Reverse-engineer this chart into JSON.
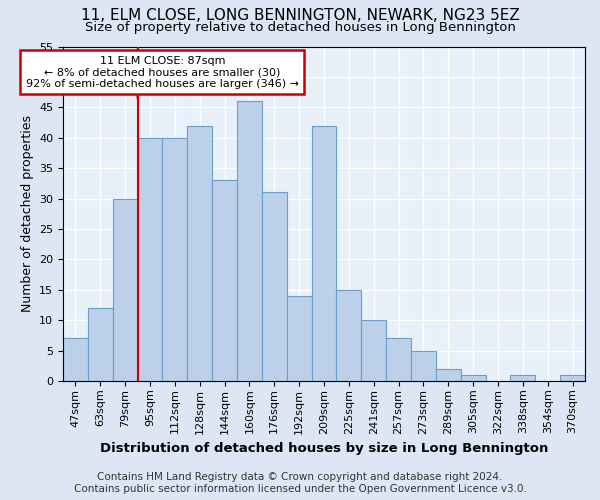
{
  "title": "11, ELM CLOSE, LONG BENNINGTON, NEWARK, NG23 5EZ",
  "subtitle": "Size of property relative to detached houses in Long Bennington",
  "xlabel": "Distribution of detached houses by size in Long Bennington",
  "ylabel": "Number of detached properties",
  "footer_line1": "Contains HM Land Registry data © Crown copyright and database right 2024.",
  "footer_line2": "Contains public sector information licensed under the Open Government Licence v3.0.",
  "bin_labels": [
    "47sqm",
    "63sqm",
    "79sqm",
    "95sqm",
    "112sqm",
    "128sqm",
    "144sqm",
    "160sqm",
    "176sqm",
    "192sqm",
    "209sqm",
    "225sqm",
    "241sqm",
    "257sqm",
    "273sqm",
    "289sqm",
    "305sqm",
    "322sqm",
    "338sqm",
    "354sqm",
    "370sqm"
  ],
  "bar_values": [
    7,
    12,
    30,
    40,
    40,
    42,
    33,
    46,
    31,
    14,
    42,
    15,
    10,
    7,
    5,
    2,
    1,
    0,
    1,
    0,
    1
  ],
  "bar_color": "#bdd0e9",
  "bar_edge_color": "#6a9ec8",
  "vline_x_idx": 2,
  "vline_color": "#cc0000",
  "annotation_line1": "11 ELM CLOSE: 87sqm",
  "annotation_line2": "← 8% of detached houses are smaller (30)",
  "annotation_line3": "92% of semi-detached houses are larger (346) →",
  "annotation_box_color": "#ffffff",
  "annotation_box_edge_color": "#cc0000",
  "ylim": [
    0,
    55
  ],
  "yticks": [
    0,
    5,
    10,
    15,
    20,
    25,
    30,
    35,
    40,
    45,
    50,
    55
  ],
  "bg_color": "#dce6f5",
  "plot_bg_color": "#e8f0fa",
  "grid_color": "#ffffff",
  "title_fontsize": 11,
  "subtitle_fontsize": 9.5,
  "tick_fontsize": 8,
  "ylabel_fontsize": 9,
  "xlabel_fontsize": 9.5,
  "annotation_fontsize": 8,
  "footer_fontsize": 7.5
}
